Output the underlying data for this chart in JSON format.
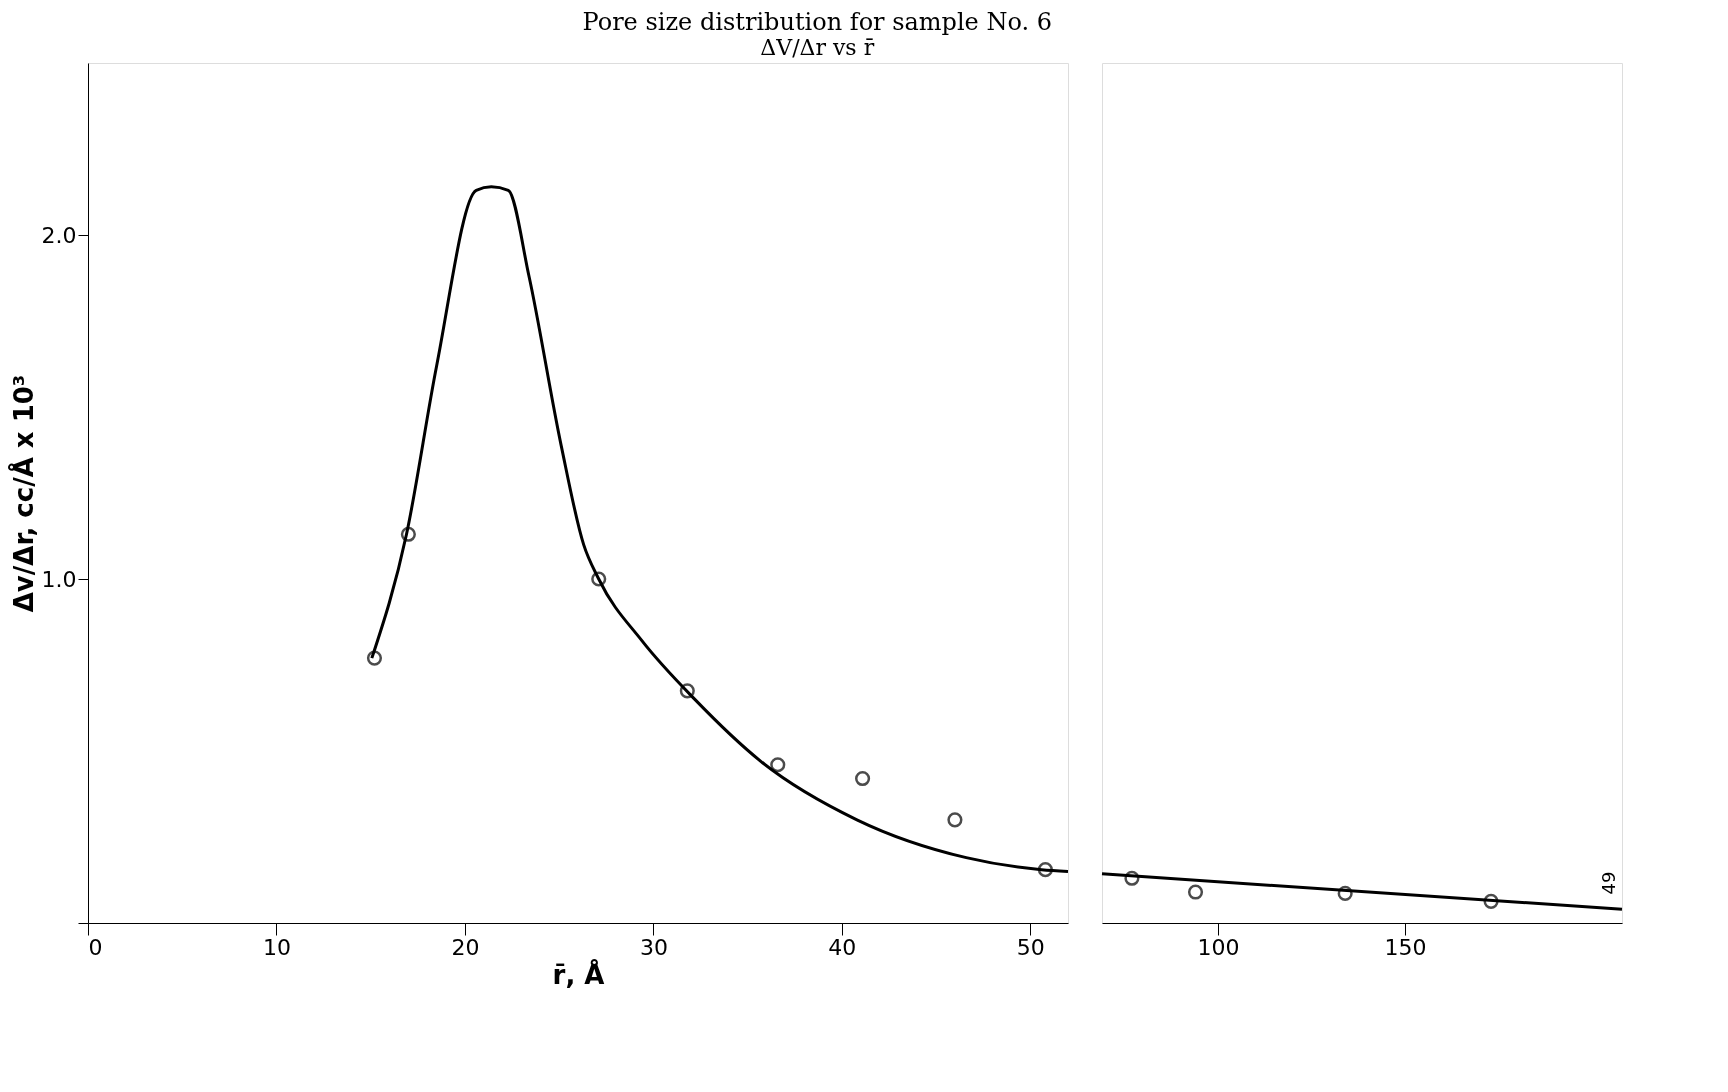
{
  "chart_data": [
    {
      "type": "scatter",
      "title": "Pore size distribution for sample No. 6",
      "subtitle": "ΔV/Δr vs r̄",
      "xlabel": "r̄, Å",
      "ylabel": "Δv/Δr, cc/Å x 10³",
      "xlim": [
        0,
        52
      ],
      "xticks": [
        0,
        10,
        20,
        30,
        40,
        50
      ],
      "ylim": [
        0,
        2.5
      ],
      "yticks": [
        {
          "value": 0,
          "label": null
        },
        {
          "value": 1,
          "label": "1.0"
        },
        {
          "value": 2,
          "label": "2.0"
        }
      ],
      "grid": false,
      "series": [
        {
          "type": "scatter",
          "marker": "circle",
          "color": "#000000",
          "x": [
            15.2,
            17,
            27.1,
            31.8,
            36.6,
            41.1,
            46,
            50.8
          ],
          "values": [
            0.77,
            1.13,
            1.0,
            0.675,
            0.46,
            0.42,
            0.3,
            0.155
          ]
        },
        {
          "type": "line",
          "marker": "none",
          "line_style": "solid",
          "color": "#000000",
          "x": [
            15.06,
            16.9,
            18.5,
            20.6,
            21.4,
            22.3,
            23.4,
            25.1,
            26.3,
            27.1,
            29.4,
            32.2,
            35.7,
            40.8,
            46.6,
            50.6,
            52
          ],
          "values": [
            0.77,
            1.13,
            1.62,
            2.13,
            2.14,
            2.13,
            1.88,
            1.39,
            1.1,
            1.0,
            0.82,
            0.65,
            0.47,
            0.3,
            0.19,
            0.155,
            0.15
          ]
        }
      ]
    },
    {
      "type": "scatter",
      "xlim": [
        69,
        208
      ],
      "xticks": [
        100,
        150
      ],
      "ylim": [
        0,
        2.5
      ],
      "tick_labels": "x",
      "grid": false,
      "annotations": [
        "49"
      ],
      "series": [
        {
          "type": "scatter",
          "marker": "circle",
          "color": "#000000",
          "x": [
            77,
            94,
            134,
            173
          ],
          "values": [
            0.13,
            0.09,
            0.086,
            0.063
          ]
        },
        {
          "type": "line",
          "marker": "none",
          "line_style": "solid",
          "color": "#000000",
          "x": [
            69,
            208
          ],
          "values": [
            0.143,
            0.04
          ]
        }
      ]
    }
  ]
}
